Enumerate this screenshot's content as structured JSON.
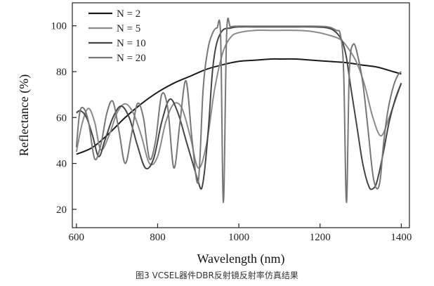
{
  "caption": "图3 VCSEL器件DBR反射镜反射率仿真结果",
  "chart_data": {
    "type": "line",
    "xlabel": "Wavelength (nm)",
    "ylabel": "Reflectance (%)",
    "xlim": [
      590,
      1420
    ],
    "ylim": [
      12,
      110
    ],
    "xticks": [
      600,
      800,
      1000,
      1200,
      1400
    ],
    "yticks": [
      20,
      40,
      60,
      80,
      100
    ],
    "grid": false,
    "legend_position": "top-left",
    "series": [
      {
        "name": "N = 2",
        "color": "#1a1a1a",
        "x": [
          600,
          640,
          680,
          720,
          760,
          800,
          840,
          880,
          920,
          960,
          1000,
          1040,
          1080,
          1100,
          1140,
          1180,
          1220,
          1260,
          1300,
          1340,
          1380,
          1400
        ],
        "y": [
          44,
          47,
          53,
          60,
          66,
          71,
          75,
          78,
          81,
          83,
          84.5,
          85,
          85.5,
          85.5,
          85.5,
          85,
          84.5,
          84,
          83,
          82,
          80,
          79
        ]
      },
      {
        "name": "N = 5",
        "color": "#8a8a8a",
        "x": [
          600,
          615,
          630,
          645,
          660,
          680,
          700,
          720,
          740,
          760,
          780,
          800,
          820,
          840,
          860,
          880,
          900,
          920,
          940,
          960,
          980,
          1000,
          1040,
          1080,
          1100,
          1140,
          1180,
          1220,
          1250,
          1270,
          1290,
          1310,
          1330,
          1350,
          1370,
          1390,
          1400
        ],
        "y": [
          45,
          58,
          64,
          58,
          46,
          52,
          62,
          66,
          62,
          52,
          40,
          43,
          58,
          66,
          64,
          52,
          38,
          48,
          72,
          88,
          95,
          97,
          98,
          98,
          98,
          98,
          97.5,
          96,
          94,
          90,
          84,
          74,
          60,
          52,
          60,
          70,
          75
        ]
      },
      {
        "name": "N = 10",
        "color": "#444444",
        "x": [
          600,
          610,
          625,
          640,
          655,
          670,
          690,
          710,
          730,
          750,
          770,
          790,
          810,
          830,
          850,
          870,
          890,
          900,
          908,
          915,
          925,
          935,
          945,
          960,
          980,
          1000,
          1060,
          1120,
          1180,
          1220,
          1240,
          1255,
          1265,
          1275,
          1290,
          1305,
          1320,
          1330,
          1340,
          1355,
          1370,
          1385,
          1400
        ],
        "y": [
          62,
          63,
          60,
          52,
          43,
          50,
          60,
          65,
          60,
          48,
          38,
          42,
          58,
          68,
          62,
          50,
          38,
          32,
          29,
          36,
          55,
          80,
          92,
          98,
          99,
          99.5,
          99.5,
          99.5,
          99.5,
          99,
          97,
          93,
          86,
          74,
          57,
          40,
          30,
          29,
          32,
          44,
          58,
          68,
          75
        ]
      },
      {
        "name": "N = 20",
        "color": "#777777",
        "x": [
          600,
          608,
          618,
          630,
          645,
          660,
          675,
          690,
          705,
          720,
          735,
          750,
          765,
          780,
          795,
          810,
          825,
          840,
          855,
          870,
          885,
          900,
          912,
          924,
          936,
          946,
          955,
          962,
          970,
          980,
          1000,
          1060,
          1120,
          1180,
          1220,
          1240,
          1250,
          1258,
          1265,
          1272,
          1282,
          1294,
          1306,
          1318,
          1330,
          1340,
          1348,
          1356,
          1366,
          1378,
          1390,
          1400
        ],
        "y": [
          47,
          62,
          64,
          58,
          42,
          48,
          62,
          67,
          54,
          40,
          52,
          66,
          60,
          42,
          50,
          70,
          64,
          38,
          58,
          76,
          50,
          32,
          72,
          90,
          97,
          99,
          96,
          23,
          97,
          99.5,
          99.8,
          99.8,
          99.8,
          99.8,
          99.5,
          98,
          96,
          80,
          23,
          80,
          92,
          86,
          74,
          55,
          35,
          29,
          33,
          48,
          62,
          72,
          78,
          80
        ]
      }
    ]
  }
}
